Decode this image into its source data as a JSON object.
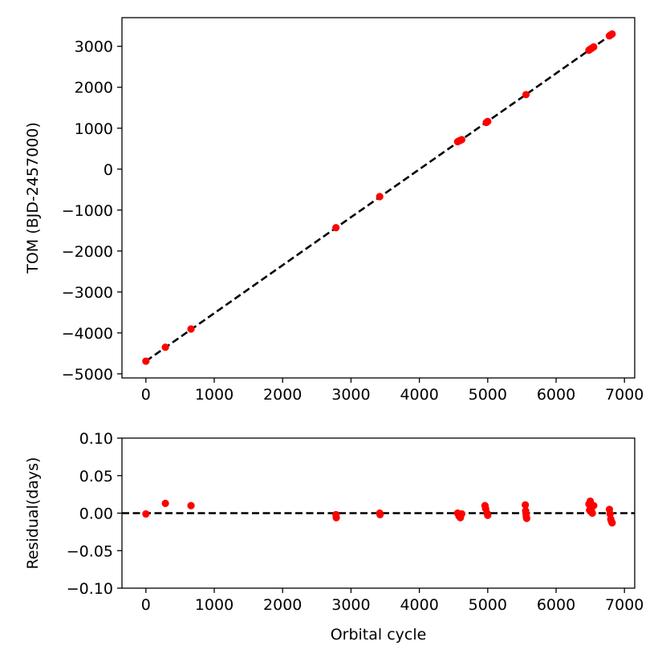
{
  "chart_data": [
    {
      "type": "scatter",
      "title": "",
      "xlabel": "",
      "ylabel": "TOM (BJD-2457000)",
      "xlim": [
        -350,
        7150
      ],
      "ylim": [
        -5100,
        3700
      ],
      "x_ticks": [
        0,
        1000,
        2000,
        3000,
        4000,
        5000,
        6000,
        7000
      ],
      "x_tick_labels": [
        "0",
        "1000",
        "2000",
        "3000",
        "4000",
        "5000",
        "6000",
        "7000"
      ],
      "y_ticks": [
        3000,
        2000,
        1000,
        0,
        -1000,
        -2000,
        -3000,
        -4000,
        -5000
      ],
      "y_tick_labels": [
        "3000",
        "2000",
        "1000",
        "0",
        "−1000",
        "−2000",
        "−3000",
        "−4000",
        "−5000"
      ],
      "grid": false,
      "series": [
        {
          "kind": "points",
          "color": "#ff0000",
          "x": [
            0,
            285,
            660,
            2780,
            3420,
            4560,
            4580,
            4600,
            4620,
            4980,
            5000,
            5560,
            6480,
            6500,
            6520,
            6550,
            6780,
            6800,
            6820
          ],
          "y": [
            -4690,
            -4350,
            -3905,
            -1430,
            -670,
            670,
            690,
            705,
            720,
            1140,
            1165,
            1820,
            2905,
            2930,
            2950,
            2985,
            3255,
            3280,
            3300
          ]
        },
        {
          "kind": "fit-line",
          "style": "dashed",
          "color": "#000000",
          "x": [
            0,
            6820
          ],
          "y": [
            -4690,
            3300
          ]
        }
      ]
    },
    {
      "type": "scatter",
      "title": "",
      "xlabel": "Orbital cycle",
      "ylabel": "Residual(days)",
      "xlim": [
        -350,
        7150
      ],
      "ylim": [
        -0.1,
        0.1
      ],
      "x_ticks": [
        0,
        1000,
        2000,
        3000,
        4000,
        5000,
        6000,
        7000
      ],
      "x_tick_labels": [
        "0",
        "1000",
        "2000",
        "3000",
        "4000",
        "5000",
        "6000",
        "7000"
      ],
      "y_ticks": [
        0.1,
        0.05,
        0.0,
        -0.05,
        -0.1
      ],
      "y_tick_labels": [
        "0.10",
        "0.05",
        "0.00",
        "−0.05",
        "−0.10"
      ],
      "grid": false,
      "series": [
        {
          "kind": "points",
          "color": "#ff0000",
          "x": [
            0,
            285,
            660,
            2780,
            2785,
            3420,
            3425,
            4560,
            4580,
            4600,
            4620,
            4960,
            4970,
            4990,
            5000,
            5550,
            5555,
            5560,
            5565,
            5570,
            6480,
            6490,
            6500,
            6510,
            6520,
            6530,
            6550,
            6780,
            6790,
            6800,
            6810,
            6820
          ],
          "y": [
            -0.001,
            0.013,
            0.01,
            -0.002,
            -0.006,
            0.0,
            -0.002,
            0.0,
            -0.004,
            -0.006,
            -0.001,
            0.01,
            0.006,
            0.0,
            -0.003,
            0.011,
            0.003,
            -0.001,
            -0.005,
            -0.007,
            0.012,
            0.004,
            0.016,
            0.008,
            0.002,
            0.0,
            0.01,
            0.005,
            -0.001,
            -0.008,
            -0.011,
            -0.013
          ]
        },
        {
          "kind": "zero-line",
          "style": "dashed",
          "color": "#000000",
          "x": [
            -350,
            7150
          ],
          "y": [
            0,
            0
          ]
        }
      ]
    }
  ]
}
